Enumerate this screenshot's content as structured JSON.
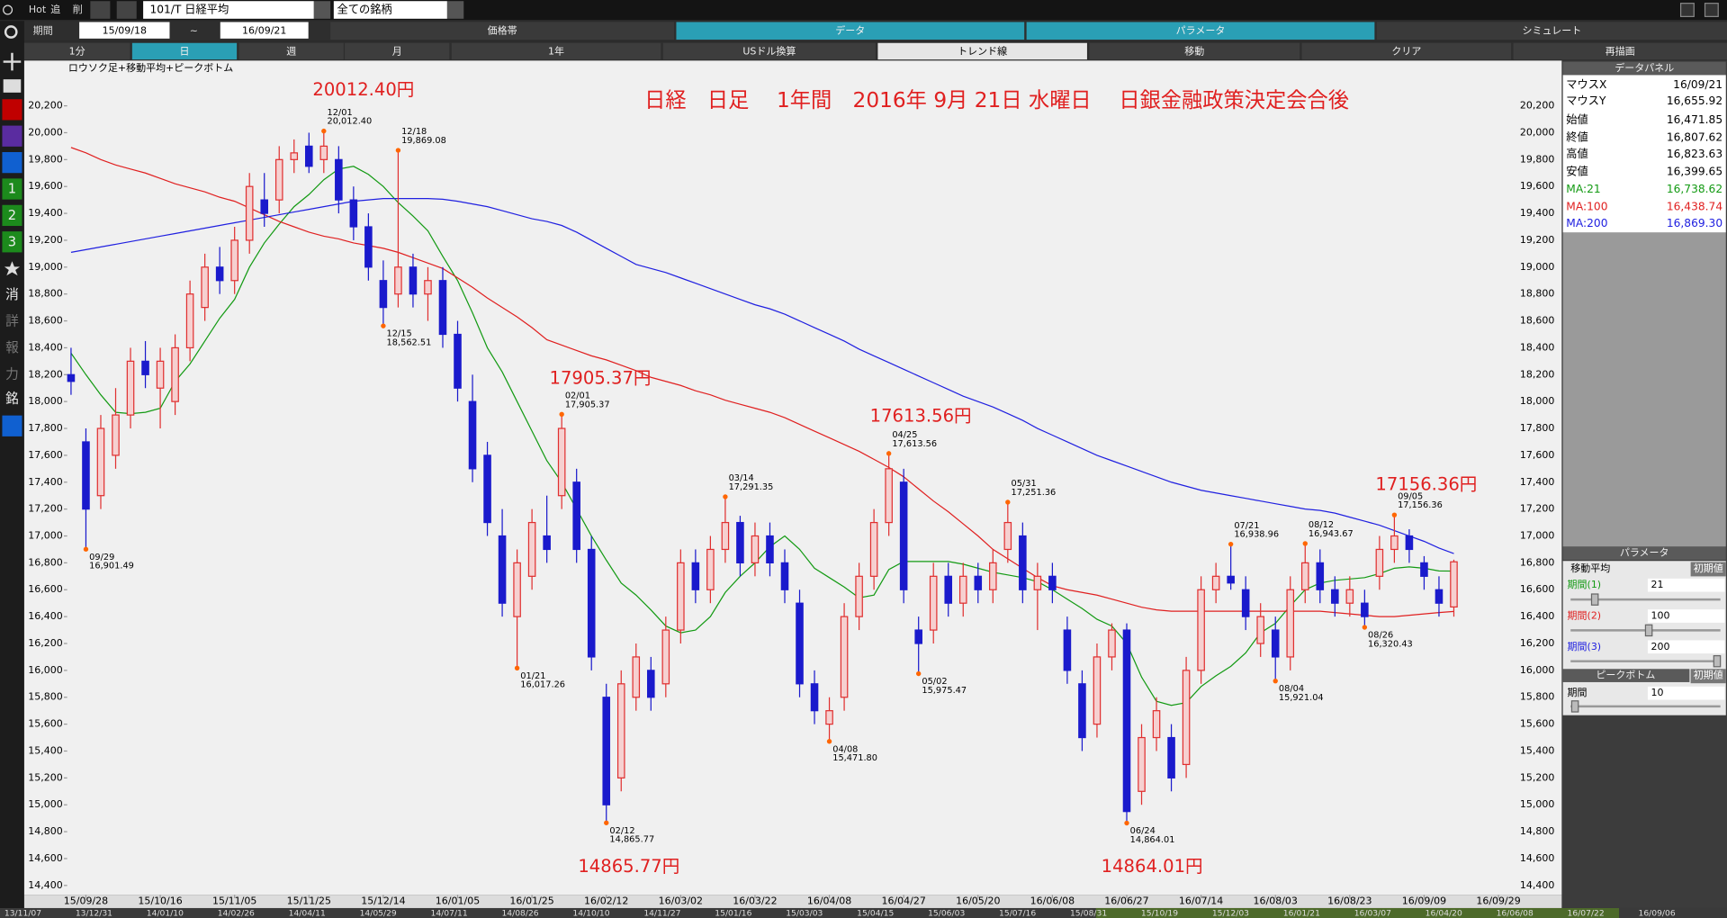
{
  "toolbar": {
    "buttons": [
      "Hot",
      "追",
      "削"
    ],
    "symbol": "101/T 日経平均",
    "filter": "全ての銘柄"
  },
  "period": {
    "label": "期間",
    "from": "15/09/18",
    "sep": "~",
    "to": "16/09/21"
  },
  "tabs": [
    "価格帯",
    "データ",
    "パラメータ",
    "シミュレート"
  ],
  "buttons": [
    "1分",
    "日",
    "週",
    "月",
    "1年",
    "USドル換算",
    "トレンド線",
    "移動",
    "クリア",
    "再描画"
  ],
  "sidebar": [
    "1",
    "2",
    "3",
    "消",
    "詳",
    "報",
    "力",
    "銘"
  ],
  "data_panel": {
    "title": "データパネル",
    "rows": [
      [
        "マウスX",
        "16/09/21"
      ],
      [
        "マウスY",
        "16,655.92"
      ],
      [
        "始値",
        "16,471.85"
      ],
      [
        "終値",
        "16,807.62"
      ],
      [
        "高値",
        "16,823.63"
      ],
      [
        "安値",
        "16,399.65"
      ],
      [
        "MA:21",
        "16,738.62"
      ],
      [
        "MA:100",
        "16,438.74"
      ],
      [
        "MA:200",
        "16,869.30"
      ]
    ]
  },
  "parameters": {
    "title": "パラメータ",
    "moving_average": "移動平均",
    "reset": "初期値",
    "periods": [
      [
        "期間(1)",
        "21"
      ],
      [
        "期間(2)",
        "100"
      ],
      [
        "期間(3)",
        "200"
      ]
    ],
    "peak_bottom": "ピークボトム",
    "peak_period": [
      "期間",
      "10"
    ]
  },
  "navigator": [
    "13/11/07",
    "13/12/31",
    "14/01/10",
    "14/02/26",
    "14/04/11",
    "14/05/29",
    "14/07/11",
    "14/08/26",
    "14/10/10",
    "14/11/27",
    "15/01/16",
    "15/03/03",
    "15/04/15",
    "15/06/03",
    "15/07/16",
    "15/08/31",
    "15/10/19",
    "15/12/03",
    "16/01/21",
    "16/03/07",
    "16/04/20",
    "16/06/08",
    "16/07/22",
    "16/09/06"
  ],
  "chart_data": {
    "type": "candlestick",
    "title": "日経　日足　 1年間　2016年 9月 21日 水曜日　 日銀金融政策決定会合後",
    "subtitle": "ロウソク足+移動平均+ピークボトム",
    "up_color": "#e03030",
    "down_color": "#1a1acc",
    "categories": [
      null,
      "15/09/28",
      null,
      null,
      null,
      null,
      "15/10/16",
      null,
      null,
      null,
      null,
      "15/11/05",
      null,
      null,
      null,
      null,
      "15/11/25",
      null,
      null,
      null,
      null,
      "15/12/14",
      null,
      null,
      null,
      null,
      "16/01/05",
      null,
      null,
      null,
      null,
      "16/01/25",
      null,
      null,
      null,
      null,
      "16/02/12",
      null,
      null,
      null,
      null,
      "16/03/02",
      null,
      null,
      null,
      null,
      "16/03/22",
      null,
      null,
      null,
      null,
      "16/04/08",
      null,
      null,
      null,
      null,
      "16/04/27",
      null,
      null,
      null,
      null,
      "16/05/20",
      null,
      null,
      null,
      null,
      "16/06/08",
      null,
      null,
      null,
      null,
      "16/06/27",
      null,
      null,
      null,
      null,
      "16/07/14",
      null,
      null,
      null,
      null,
      "16/08/03",
      null,
      null,
      null,
      null,
      "16/08/23",
      null,
      null,
      null,
      null,
      "16/09/09",
      null,
      null,
      null,
      null,
      "16/09/29"
    ],
    "ohlc": [
      [
        18200,
        18400,
        18050,
        18150
      ],
      [
        17700,
        17800,
        16901.49,
        17200
      ],
      [
        17300,
        17900,
        17200,
        17800
      ],
      [
        17600,
        18100,
        17500,
        17900
      ],
      [
        17900,
        18400,
        17800,
        18300
      ],
      [
        18300,
        18450,
        18100,
        18200
      ],
      [
        18100,
        18400,
        17800,
        18300
      ],
      [
        18000,
        18500,
        17900,
        18400
      ],
      [
        18400,
        18900,
        18300,
        18800
      ],
      [
        18700,
        19100,
        18600,
        19000
      ],
      [
        19000,
        19150,
        18800,
        18900
      ],
      [
        18900,
        19300,
        18800,
        19200
      ],
      [
        19200,
        19700,
        19100,
        19600
      ],
      [
        19500,
        19700,
        19300,
        19400
      ],
      [
        19500,
        19900,
        19400,
        19800
      ],
      [
        19800,
        19950,
        19700,
        19850
      ],
      [
        19900,
        20000,
        19700,
        19750
      ],
      [
        19800,
        20012.4,
        19700,
        19900
      ],
      [
        19800,
        19900,
        19400,
        19500
      ],
      [
        19500,
        19600,
        19200,
        19300
      ],
      [
        19300,
        19400,
        18900,
        19000
      ],
      [
        18900,
        19050,
        18562.51,
        18700
      ],
      [
        18800,
        19869.08,
        18700,
        19000
      ],
      [
        19000,
        19100,
        18700,
        18800
      ],
      [
        18800,
        19000,
        18600,
        18900
      ],
      [
        18900,
        19000,
        18400,
        18500
      ],
      [
        18500,
        18600,
        18000,
        18100
      ],
      [
        18000,
        18200,
        17400,
        17500
      ],
      [
        17600,
        17700,
        17000,
        17100
      ],
      [
        17000,
        17200,
        16400,
        16500
      ],
      [
        16400,
        16900,
        16017.26,
        16800
      ],
      [
        16700,
        17200,
        16600,
        17100
      ],
      [
        17000,
        17300,
        16800,
        16900
      ],
      [
        17300,
        17905.37,
        17200,
        17800
      ],
      [
        17400,
        17500,
        16800,
        16900
      ],
      [
        16900,
        17000,
        16000,
        16100
      ],
      [
        15800,
        15900,
        14865.77,
        15000
      ],
      [
        15200,
        16000,
        15100,
        15900
      ],
      [
        15800,
        16200,
        15700,
        16100
      ],
      [
        16000,
        16100,
        15700,
        15800
      ],
      [
        15900,
        16400,
        15800,
        16300
      ],
      [
        16300,
        16900,
        16200,
        16800
      ],
      [
        16800,
        16900,
        16500,
        16600
      ],
      [
        16600,
        17000,
        16500,
        16900
      ],
      [
        16900,
        17291.35,
        16800,
        17100
      ],
      [
        17100,
        17150,
        16700,
        16800
      ],
      [
        16800,
        17100,
        16700,
        17000
      ],
      [
        17000,
        17100,
        16700,
        16800
      ],
      [
        16800,
        16900,
        16500,
        16600
      ],
      [
        16500,
        16600,
        15800,
        15900
      ],
      [
        15900,
        16000,
        15600,
        15700
      ],
      [
        15600,
        15800,
        15471.8,
        15700
      ],
      [
        15800,
        16500,
        15700,
        16400
      ],
      [
        16400,
        16800,
        16300,
        16700
      ],
      [
        16700,
        17200,
        16600,
        17100
      ],
      [
        17100,
        17613.56,
        17000,
        17500
      ],
      [
        17400,
        17500,
        16500,
        16600
      ],
      [
        16300,
        16400,
        15975.47,
        16200
      ],
      [
        16300,
        16800,
        16200,
        16700
      ],
      [
        16700,
        16800,
        16400,
        16500
      ],
      [
        16500,
        16800,
        16400,
        16700
      ],
      [
        16700,
        16800,
        16500,
        16600
      ],
      [
        16600,
        16900,
        16500,
        16800
      ],
      [
        16900,
        17251.36,
        16800,
        17100
      ],
      [
        17000,
        17100,
        16500,
        16600
      ],
      [
        16600,
        16800,
        16300,
        16700
      ],
      [
        16700,
        16800,
        16500,
        16600
      ],
      [
        16300,
        16400,
        15900,
        16000
      ],
      [
        15900,
        16000,
        15400,
        15500
      ],
      [
        15600,
        16200,
        15500,
        16100
      ],
      [
        16100,
        16350,
        16000,
        16300
      ],
      [
        16300,
        16350,
        14864.01,
        14950
      ],
      [
        15100,
        15600,
        15000,
        15500
      ],
      [
        15500,
        15800,
        15400,
        15700
      ],
      [
        15500,
        15600,
        15100,
        15200
      ],
      [
        15300,
        16100,
        15200,
        16000
      ],
      [
        16000,
        16700,
        15900,
        16600
      ],
      [
        16600,
        16800,
        16500,
        16700
      ],
      [
        16700,
        16938.96,
        16600,
        16650
      ],
      [
        16600,
        16700,
        16300,
        16400
      ],
      [
        16200,
        16500,
        16100,
        16400
      ],
      [
        16300,
        16400,
        15921.04,
        16100
      ],
      [
        16100,
        16700,
        16000,
        16600
      ],
      [
        16600,
        16943.67,
        16500,
        16800
      ],
      [
        16800,
        16900,
        16500,
        16600
      ],
      [
        16600,
        16700,
        16400,
        16500
      ],
      [
        16500,
        16700,
        16400,
        16600
      ],
      [
        16500,
        16600,
        16320.43,
        16400
      ],
      [
        16700,
        17000,
        16600,
        16900
      ],
      [
        16900,
        17156.36,
        16800,
        17000
      ],
      [
        17000,
        17050,
        16800,
        16900
      ],
      [
        16800,
        16850,
        16600,
        16700
      ],
      [
        16600,
        16700,
        16400,
        16500
      ],
      [
        16471.85,
        16823.63,
        16399.65,
        16807.62
      ],
      null,
      null,
      null
    ],
    "series": [
      {
        "name": "MA:21",
        "color": "#139a13",
        "values": [
          18360,
          18200,
          18050,
          17920,
          17910,
          17920,
          17950,
          18150,
          18280,
          18450,
          18620,
          18760,
          19000,
          19180,
          19320,
          19450,
          19540,
          19650,
          19730,
          19750,
          19690,
          19600,
          19480,
          19380,
          19270,
          19080,
          18900,
          18660,
          18400,
          18220,
          18000,
          17780,
          17560,
          17400,
          17200,
          17000,
          16820,
          16650,
          16560,
          16450,
          16330,
          16280,
          16300,
          16400,
          16580,
          16700,
          16800,
          16920,
          17000,
          16900,
          16760,
          16690,
          16620,
          16540,
          16560,
          16750,
          16810,
          16810,
          16810,
          16810,
          16790,
          16760,
          16730,
          16710,
          16690,
          16660,
          16600,
          16530,
          16460,
          16380,
          16330,
          16200,
          15950,
          15770,
          15740,
          15760,
          15880,
          15960,
          16030,
          16130,
          16280,
          16350,
          16480,
          16600,
          16650,
          16670,
          16680,
          16690,
          16720,
          16760,
          16770,
          16760,
          16740,
          16738.62,
          null,
          null,
          null
        ]
      },
      {
        "name": "MA:100",
        "color": "#e02020",
        "values": [
          19890,
          19850,
          19800,
          19760,
          19730,
          19700,
          19660,
          19620,
          19590,
          19560,
          19520,
          19490,
          19440,
          19390,
          19340,
          19300,
          19260,
          19230,
          19210,
          19180,
          19160,
          19140,
          19110,
          19070,
          19030,
          18990,
          18920,
          18850,
          18770,
          18700,
          18630,
          18550,
          18460,
          18420,
          18380,
          18340,
          18310,
          18270,
          18230,
          18180,
          18150,
          18120,
          18080,
          18050,
          18010,
          17980,
          17950,
          17920,
          17880,
          17830,
          17780,
          17730,
          17680,
          17630,
          17570,
          17510,
          17440,
          17350,
          17260,
          17180,
          17090,
          17000,
          16900,
          16830,
          16760,
          16690,
          16630,
          16600,
          16580,
          16560,
          16530,
          16500,
          16470,
          16450,
          16440,
          16440,
          16440,
          16440,
          16440,
          16440,
          16440,
          16440,
          16440,
          16440,
          16440,
          16430,
          16420,
          16410,
          16400,
          16400,
          16410,
          16420,
          16430,
          16438.74,
          null,
          null,
          null
        ]
      },
      {
        "name": "MA:200",
        "color": "#2020e0",
        "values": [
          19110,
          19130,
          19150,
          19170,
          19190,
          19210,
          19230,
          19250,
          19270,
          19290,
          19310,
          19330,
          19350,
          19370,
          19390,
          19410,
          19430,
          19450,
          19470,
          19490,
          19500,
          19510,
          19510,
          19510,
          19510,
          19505,
          19490,
          19470,
          19450,
          19420,
          19390,
          19360,
          19340,
          19310,
          19260,
          19200,
          19140,
          19080,
          19020,
          18990,
          18960,
          18920,
          18880,
          18840,
          18800,
          18760,
          18720,
          18690,
          18650,
          18600,
          18550,
          18500,
          18450,
          18390,
          18340,
          18290,
          18240,
          18190,
          18140,
          18090,
          18040,
          18000,
          17960,
          17910,
          17860,
          17800,
          17750,
          17700,
          17650,
          17600,
          17560,
          17520,
          17480,
          17440,
          17400,
          17370,
          17340,
          17320,
          17300,
          17280,
          17260,
          17240,
          17220,
          17200,
          17190,
          17170,
          17140,
          17110,
          17080,
          17040,
          17000,
          16960,
          16910,
          16869.3,
          null,
          null,
          null
        ]
      }
    ],
    "ylim": [
      14330,
      20520
    ],
    "yticks": [
      {
        "value": 14400,
        "label": "14,400"
      },
      {
        "value": 14600,
        "label": "14,600"
      },
      {
        "value": 14800,
        "label": "14,800"
      },
      {
        "value": 15000,
        "label": "15,000"
      },
      {
        "value": 15200,
        "label": "15,200"
      },
      {
        "value": 15400,
        "label": "15,400"
      },
      {
        "value": 15600,
        "label": "15,600"
      },
      {
        "value": 15800,
        "label": "15,800"
      },
      {
        "value": 16000,
        "label": "16,000"
      },
      {
        "value": 16200,
        "label": "16,200"
      },
      {
        "value": 16400,
        "label": "16,400"
      },
      {
        "value": 16600,
        "label": "16,600"
      },
      {
        "value": 16800,
        "label": "16,800"
      },
      {
        "value": 17000,
        "label": "17,000"
      },
      {
        "value": 17200,
        "label": "17,200"
      },
      {
        "value": 17400,
        "label": "17,400"
      },
      {
        "value": 17600,
        "label": "17,600"
      },
      {
        "value": 17800,
        "label": "17,800"
      },
      {
        "value": 18000,
        "label": "18,000"
      },
      {
        "value": 18200,
        "label": "18,200"
      },
      {
        "value": 18400,
        "label": "18,400"
      },
      {
        "value": 18600,
        "label": "18,600"
      },
      {
        "value": 18800,
        "label": "18,800"
      },
      {
        "value": 19000,
        "label": "19,000"
      },
      {
        "value": 19200,
        "label": "19,200"
      },
      {
        "value": 19400,
        "label": "19,400"
      },
      {
        "value": 19600,
        "label": "19,600"
      },
      {
        "value": 19800,
        "label": "19,800"
      },
      {
        "value": 20000,
        "label": "20,000"
      },
      {
        "value": 20200,
        "label": "20,200"
      }
    ],
    "peak_color": "#ff6600",
    "annotations": [
      {
        "date": "09/29",
        "value": 16901.49,
        "label": "16,901.49"
      },
      {
        "date": "12/01",
        "value": 20012.4,
        "label": "20,012.40"
      },
      {
        "date": "12/15",
        "value": 18562.51,
        "label": "18,562.51"
      },
      {
        "date": "12/18",
        "value": 19869.08,
        "label": "19,869.08"
      },
      {
        "date": "01/21",
        "value": 16017.26,
        "label": "16,017.26"
      },
      {
        "date": "02/01",
        "value": 17905.37,
        "label": "17,905.37"
      },
      {
        "date": "02/12",
        "value": 14865.77,
        "label": "14,865.77"
      },
      {
        "date": "03/14",
        "value": 17291.35,
        "label": "17,291.35"
      },
      {
        "date": "04/08",
        "value": 15471.8,
        "label": "15,471.80"
      },
      {
        "date": "04/25",
        "value": 17613.56,
        "label": "17,613.56"
      },
      {
        "date": "05/02",
        "value": 15975.47,
        "label": "15,975.47"
      },
      {
        "date": "05/31",
        "value": 17251.36,
        "label": "17,251.36"
      },
      {
        "date": "06/24",
        "value": 14864.01,
        "label": "14,864.01"
      },
      {
        "date": "07/21",
        "value": 16938.96,
        "label": "16,938.96"
      },
      {
        "date": "08/04",
        "value": 15921.04,
        "label": "15,921.04"
      },
      {
        "date": "08/12",
        "value": 16943.67,
        "label": "16,943.67"
      },
      {
        "date": "08/26",
        "value": 16320.43,
        "label": "16,320.43"
      },
      {
        "date": "09/05",
        "value": 17156.36,
        "label": "17,156.36"
      }
    ],
    "callouts": [
      "20012.40円",
      "17905.37円",
      "14865.77円",
      "17613.56円",
      "14864.01円",
      "17156.36円"
    ]
  }
}
